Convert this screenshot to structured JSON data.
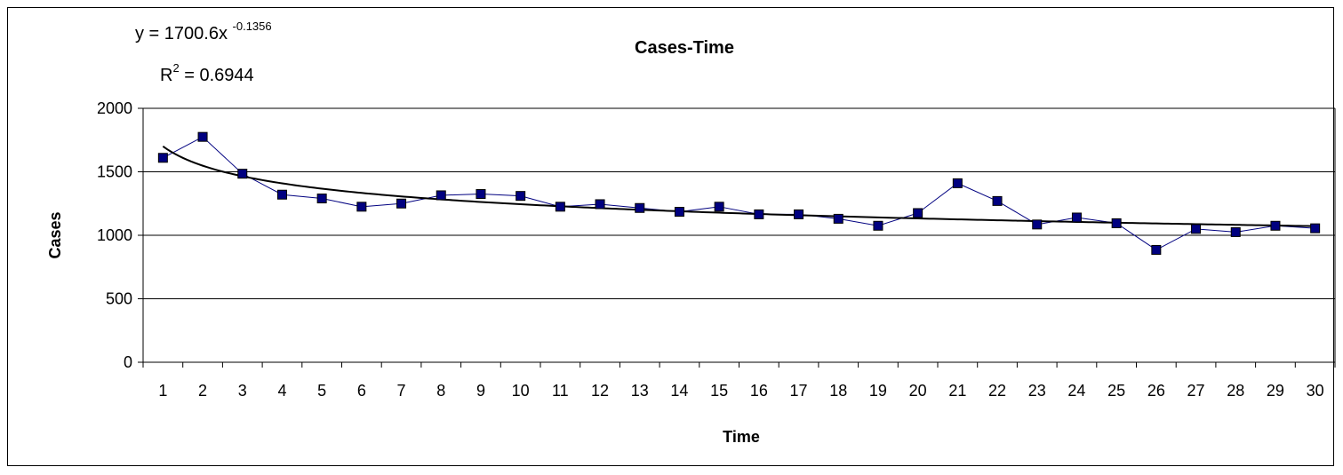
{
  "chart_data": {
    "type": "line",
    "title": "Cases-Time",
    "xlabel": "Time",
    "ylabel": "Cases",
    "categories": [
      "1",
      "2",
      "3",
      "4",
      "5",
      "6",
      "7",
      "8",
      "9",
      "10",
      "11",
      "12",
      "13",
      "14",
      "15",
      "16",
      "17",
      "18",
      "19",
      "20",
      "21",
      "22",
      "23",
      "24",
      "25",
      "26",
      "27",
      "28",
      "29",
      "30"
    ],
    "series": [
      {
        "values": [
          1610,
          1775,
          1485,
          1320,
          1290,
          1225,
          1250,
          1315,
          1325,
          1310,
          1225,
          1245,
          1215,
          1185,
          1225,
          1165,
          1165,
          1130,
          1075,
          1175,
          1410,
          1270,
          1085,
          1140,
          1095,
          885,
          1050,
          1025,
          1075,
          1055
        ]
      }
    ],
    "trendline": {
      "type": "power",
      "a": 1700.6,
      "b": -0.1356,
      "equation_prefix": "y = 1700.6x",
      "equation_exponent": "-0.1356",
      "r2_prefix": "R",
      "r2_superscript": "2",
      "r2_suffix": " = 0.6944"
    },
    "yticks": [
      0,
      500,
      1000,
      1500,
      2000
    ],
    "ylim": [
      0,
      2000
    ],
    "grid": true,
    "legend": "none",
    "colors": {
      "series": "#000080",
      "marker_fill": "#000080",
      "trendline": "#000000",
      "grid": "#000000"
    }
  }
}
